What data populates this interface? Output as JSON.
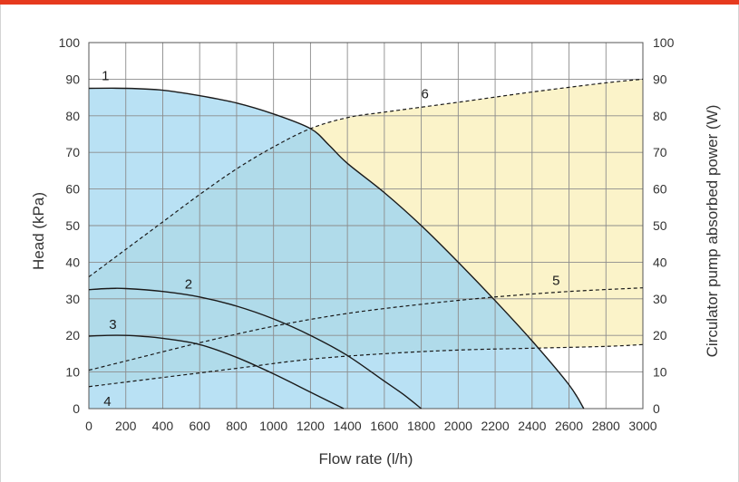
{
  "colors": {
    "header_bar": "#e63a1e",
    "head_fill": "#b5dff3",
    "power_fill": "#fbf3c9",
    "overlap_fill": "#a9d7e4",
    "grid": "#8c8c8c",
    "line": "#1a1a1a"
  },
  "chart_data": {
    "type": "line",
    "xlabel": "Flow rate (l/h)",
    "ylabel": "Head (kPa)",
    "y2label": "Circulator pump absorbed power (W)",
    "xlim": [
      0,
      3000
    ],
    "ylim": [
      0,
      100
    ],
    "y2lim": [
      0,
      100
    ],
    "x_ticks": [
      "0",
      "200",
      "400",
      "600",
      "800",
      "1000",
      "1200",
      "1400",
      "1600",
      "1800",
      "2000",
      "2200",
      "2400",
      "2600",
      "2800",
      "3000"
    ],
    "y_ticks": [
      "0",
      "10",
      "20",
      "30",
      "40",
      "50",
      "60",
      "70",
      "80",
      "90",
      "100"
    ],
    "y2_ticks": [
      "0",
      "10",
      "20",
      "30",
      "40",
      "50",
      "60",
      "70",
      "80",
      "90",
      "100"
    ],
    "grid": true,
    "series": [
      {
        "name": "1",
        "axis": "head",
        "style": "solid",
        "x": [
          0,
          200,
          400,
          600,
          800,
          1000,
          1200,
          1300,
          1400,
          1600,
          1800,
          2000,
          2200,
          2400,
          2600,
          2680
        ],
        "y": [
          87.5,
          87.5,
          87,
          85.5,
          83.5,
          80.5,
          76.5,
          72,
          67,
          59,
          50,
          40,
          29.5,
          18.5,
          6.5,
          0
        ]
      },
      {
        "name": "2",
        "axis": "head",
        "style": "solid",
        "x": [
          0,
          100,
          200,
          400,
          600,
          800,
          1000,
          1200,
          1400,
          1600,
          1700,
          1800
        ],
        "y": [
          32.5,
          32.8,
          32.8,
          32,
          30.5,
          28,
          24.5,
          20,
          14.5,
          7.5,
          4,
          0
        ]
      },
      {
        "name": "3",
        "axis": "head",
        "style": "solid",
        "x": [
          0,
          100,
          200,
          300,
          400,
          600,
          800,
          1000,
          1200,
          1380
        ],
        "y": [
          19.8,
          20,
          20,
          19.7,
          19.2,
          17.5,
          14,
          9.5,
          4.5,
          0
        ]
      },
      {
        "name": "6",
        "axis": "power",
        "style": "dashed",
        "x": [
          0,
          200,
          400,
          600,
          800,
          1000,
          1200,
          1400,
          1600,
          2000,
          2400,
          2800,
          3000
        ],
        "y": [
          36,
          43.5,
          51,
          58.5,
          65.5,
          71.5,
          76.5,
          79.5,
          81,
          83.7,
          86.5,
          89,
          90
        ]
      },
      {
        "name": "5",
        "axis": "power",
        "style": "dashed",
        "x": [
          0,
          200,
          600,
          1000,
          1400,
          1800,
          2200,
          2600,
          3000
        ],
        "y": [
          10.5,
          13,
          18,
          22.5,
          26,
          28.5,
          30.5,
          32,
          33
        ]
      },
      {
        "name": "4",
        "axis": "power",
        "style": "dashed",
        "x": [
          0,
          400,
          800,
          1200,
          1600,
          2000,
          2400,
          2800,
          3000
        ],
        "y": [
          6,
          8.5,
          11,
          13.5,
          15,
          16,
          16.5,
          17,
          17.5
        ]
      }
    ],
    "curve_labels": [
      {
        "text": "1",
        "x": 90,
        "y": 91
      },
      {
        "text": "2",
        "x": 540,
        "y": 34
      },
      {
        "text": "3",
        "x": 130,
        "y": 23
      },
      {
        "text": "4",
        "x": 100,
        "y": 2
      },
      {
        "text": "5",
        "x": 2530,
        "y": 35
      },
      {
        "text": "6",
        "x": 1820,
        "y": 86
      }
    ]
  }
}
